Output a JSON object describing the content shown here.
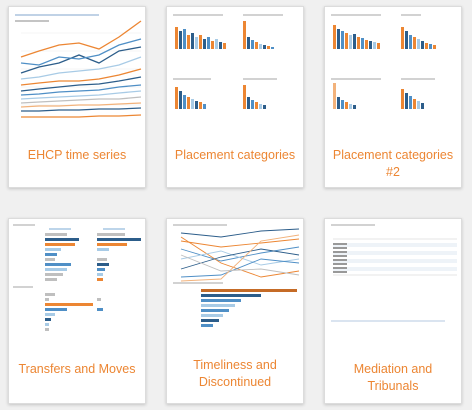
{
  "cards": [
    {
      "label": "EHCP time series"
    },
    {
      "label": "Placement categories"
    },
    {
      "label": "Placement categories #2"
    },
    {
      "label": "Transfers and Moves"
    },
    {
      "label": "Timeliness and Discontinued"
    },
    {
      "label": "Mediation and Tribunals"
    }
  ],
  "colors": {
    "accent": "#ec8633",
    "dark_blue": "#2c5d8a",
    "mid_blue": "#4f8fc6",
    "light_blue": "#a8cbe6",
    "grey": "#bfbfbf"
  }
}
